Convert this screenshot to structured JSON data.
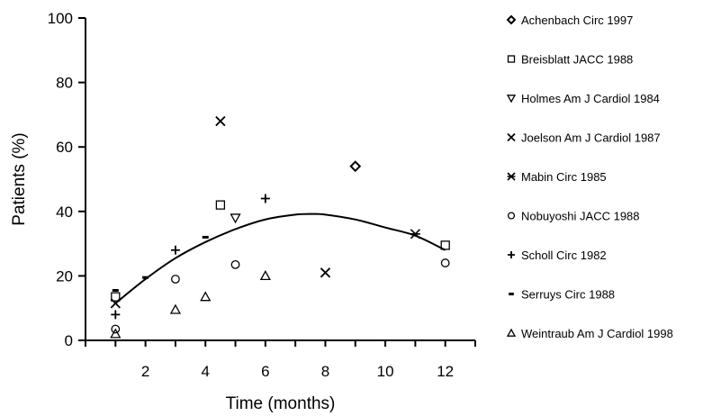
{
  "chart_data": {
    "type": "scatter",
    "xlabel": "Time (months)",
    "ylabel": "Patients (%)",
    "xlim": [
      0,
      13
    ],
    "ylim": [
      0,
      100
    ],
    "x_ticks": [
      2,
      4,
      6,
      8,
      10,
      12
    ],
    "y_ticks": [
      0,
      20,
      40,
      60,
      80,
      100
    ],
    "grid": false,
    "legend_position": "right",
    "series": [
      {
        "name": "Achenbach Circ 1997",
        "marker": "diamond",
        "points": [
          [
            9,
            54
          ]
        ]
      },
      {
        "name": "Breisblatt JACC 1988",
        "marker": "square",
        "points": [
          [
            1,
            13.5
          ],
          [
            4.5,
            42
          ],
          [
            12,
            29.5
          ]
        ]
      },
      {
        "name": "Holmes Am J Cardiol 1984",
        "marker": "triangle-down",
        "points": [
          [
            5,
            38
          ]
        ]
      },
      {
        "name": "Joelson Am J Cardiol 1987",
        "marker": "x",
        "points": [
          [
            1,
            11.5
          ],
          [
            4.5,
            68
          ],
          [
            8,
            21
          ]
        ]
      },
      {
        "name": "Mabin Circ 1985",
        "marker": "asterisk",
        "points": [
          [
            11,
            33
          ]
        ]
      },
      {
        "name": "Nobuyoshi JACC 1988",
        "marker": "circle",
        "points": [
          [
            1,
            3.5
          ],
          [
            3,
            19
          ],
          [
            5,
            23.5
          ],
          [
            12,
            24
          ]
        ]
      },
      {
        "name": "Scholl Circ 1982",
        "marker": "plus",
        "points": [
          [
            1,
            8
          ],
          [
            3,
            28
          ],
          [
            6,
            44
          ]
        ]
      },
      {
        "name": "Serruys Circ 1988",
        "marker": "dash",
        "points": [
          [
            1,
            15.5
          ],
          [
            2,
            19.5
          ],
          [
            4,
            32
          ]
        ]
      },
      {
        "name": "Weintraub Am J Cardiol 1998",
        "marker": "triangle-up",
        "points": [
          [
            1,
            2
          ],
          [
            3,
            9.5
          ],
          [
            4,
            13.5
          ],
          [
            6,
            20
          ]
        ]
      }
    ],
    "trend_line": {
      "type": "quadratic",
      "points": [
        [
          1,
          11.5
        ],
        [
          2,
          19
        ],
        [
          3,
          25.5
        ],
        [
          4,
          30.5
        ],
        [
          5,
          34.5
        ],
        [
          6,
          37.5
        ],
        [
          7,
          39
        ],
        [
          7.6,
          39.2
        ],
        [
          8,
          39
        ],
        [
          9,
          37.5
        ],
        [
          10,
          35
        ],
        [
          11,
          32.5
        ],
        [
          12,
          28
        ]
      ]
    }
  }
}
